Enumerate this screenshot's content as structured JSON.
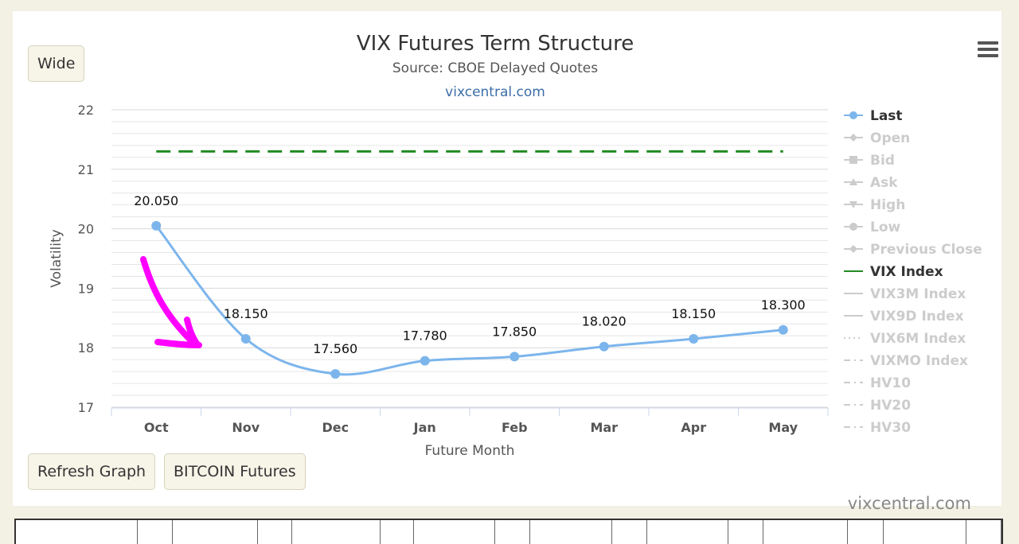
{
  "header": {
    "wide_button": "Wide",
    "menu_icon": "hamburger-menu-icon"
  },
  "buttons": {
    "refresh": "Refresh Graph",
    "bitcoin": "BITCOIN Futures"
  },
  "credits": "vixcentral.com",
  "chart_data": {
    "type": "line",
    "title": "VIX Futures Term Structure",
    "subtitle": "Source: CBOE Delayed Quotes",
    "subtitle_link": "vixcentral.com",
    "xlabel": "Future Month",
    "ylabel": "Volatility",
    "ylim": [
      17,
      22
    ],
    "yticks": [
      17,
      18,
      19,
      20,
      21,
      22
    ],
    "grid": true,
    "categories": [
      "Oct",
      "Nov",
      "Dec",
      "Jan",
      "Feb",
      "Mar",
      "Apr",
      "May"
    ],
    "series": [
      {
        "name": "Last",
        "color": "#7cb5ec",
        "values": [
          20.05,
          18.15,
          17.56,
          17.78,
          17.85,
          18.02,
          18.15,
          18.3
        ],
        "labels": [
          "20.050",
          "18.150",
          "17.560",
          "17.780",
          "17.850",
          "18.020",
          "18.150",
          "18.300"
        ]
      },
      {
        "name": "VIX Index",
        "color": "#228b22",
        "style": "dashed",
        "values": [
          21.3,
          21.3,
          21.3,
          21.3,
          21.3,
          21.3,
          21.3,
          21.3
        ]
      }
    ],
    "legend_position": "right",
    "legend": [
      {
        "name": "Last",
        "active": true,
        "symbol": "circle"
      },
      {
        "name": "Open",
        "active": false,
        "symbol": "diamond"
      },
      {
        "name": "Bid",
        "active": false,
        "symbol": "square"
      },
      {
        "name": "Ask",
        "active": false,
        "symbol": "triangle"
      },
      {
        "name": "High",
        "active": false,
        "symbol": "triangle-down"
      },
      {
        "name": "Low",
        "active": false,
        "symbol": "circle"
      },
      {
        "name": "Previous Close",
        "active": false,
        "symbol": "diamond"
      },
      {
        "name": "VIX Index",
        "active": true,
        "symbol": "line",
        "color": "#228b22"
      },
      {
        "name": "VIX3M Index",
        "active": false,
        "symbol": "line"
      },
      {
        "name": "VIX9D Index",
        "active": false,
        "symbol": "line"
      },
      {
        "name": "VIX6M Index",
        "active": false,
        "symbol": "dotted"
      },
      {
        "name": "VIXMO Index",
        "active": false,
        "symbol": "dashdot"
      },
      {
        "name": "HV10",
        "active": false,
        "symbol": "dashdot"
      },
      {
        "name": "HV20",
        "active": false,
        "symbol": "dashdot"
      },
      {
        "name": "HV30",
        "active": false,
        "symbol": "dashdot"
      }
    ],
    "annotation_color": "#ff00ff"
  }
}
